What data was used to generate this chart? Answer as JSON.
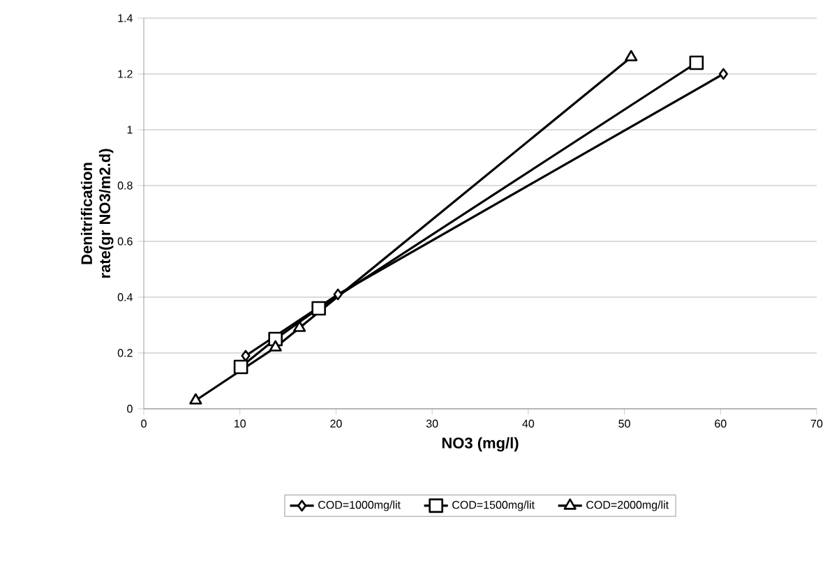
{
  "chart_data": {
    "type": "line",
    "xlabel": "NO3 (mg/l)",
    "ylabel": "Denitrification rate(gr NO3/m2.d)",
    "xlim": [
      0,
      70
    ],
    "xticks": [
      0,
      10,
      20,
      30,
      40,
      50,
      60,
      70
    ],
    "ylim": [
      0,
      1.4
    ],
    "yticks": [
      0,
      0.2,
      0.4,
      0.6,
      0.8,
      1,
      1.2,
      1.4
    ],
    "grid": "y",
    "legend": "bottom",
    "series": [
      {
        "name": "COD=1000mg/lit",
        "color": "#000000",
        "marker": "diamond",
        "x": [
          10.6,
          20.2,
          60.3
        ],
        "values": [
          0.19,
          0.41,
          1.2
        ]
      },
      {
        "name": "COD=1500mg/lit",
        "color": "#000000",
        "marker": "square",
        "x": [
          10.1,
          13.7,
          18.2,
          57.5
        ],
        "values": [
          0.15,
          0.25,
          0.36,
          1.24
        ]
      },
      {
        "name": "COD=2000mg/lit",
        "color": "#000000",
        "marker": "triangle",
        "x": [
          5.4,
          13.7,
          16.2,
          50.7
        ],
        "values": [
          0.03,
          0.22,
          0.29,
          1.26
        ]
      }
    ]
  }
}
